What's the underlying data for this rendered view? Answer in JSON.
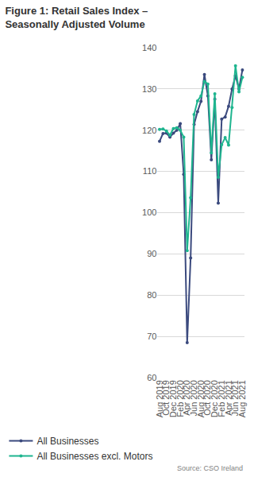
{
  "chart_data": {
    "type": "line",
    "title": "Figure 1: Retail Sales Index – Seasonally Adjusted Volume",
    "source": "Source: CSO Ireland",
    "categories": [
      "Aug 2019",
      null,
      "Oct 2019",
      null,
      "Dec 2019",
      null,
      "Feb 2020",
      null,
      "Apr 2020",
      null,
      "Jun 2020",
      null,
      "Aug 2020",
      null,
      "Oct 2020",
      null,
      "Dec 2020",
      null,
      "Feb 2021",
      null,
      "Apr 2021",
      null,
      "Jun 2021",
      null,
      "Aug 2021"
    ],
    "series": [
      {
        "name": "All Businesses",
        "color": "#3b4a7e",
        "marker": "circle",
        "values": [
          117.3,
          119.2,
          119.3,
          118.3,
          119.3,
          120.0,
          121.6,
          109.3,
          68.5,
          89.0,
          121.4,
          124.5,
          127.0,
          133.5,
          128.3,
          112.8,
          127.5,
          102.3,
          122.7,
          123.2,
          125.8,
          130.0,
          133.2,
          130.0,
          134.6
        ]
      },
      {
        "name": "All Businesses excl. Motors",
        "color": "#1fb58f",
        "marker": "circle",
        "values": [
          120.2,
          120.3,
          119.8,
          118.8,
          120.4,
          120.6,
          120.0,
          118.3,
          90.8,
          103.6,
          123.8,
          127.1,
          128.3,
          131.8,
          131.2,
          114.5,
          128.8,
          108.6,
          116.5,
          118.2,
          116.4,
          125.5,
          135.6,
          129.3,
          132.8
        ]
      }
    ],
    "ylim": [
      60,
      140
    ],
    "yticks": [
      60,
      70,
      80,
      90,
      100,
      110,
      120,
      130,
      140
    ],
    "grid": true,
    "legend": "bottom left"
  }
}
